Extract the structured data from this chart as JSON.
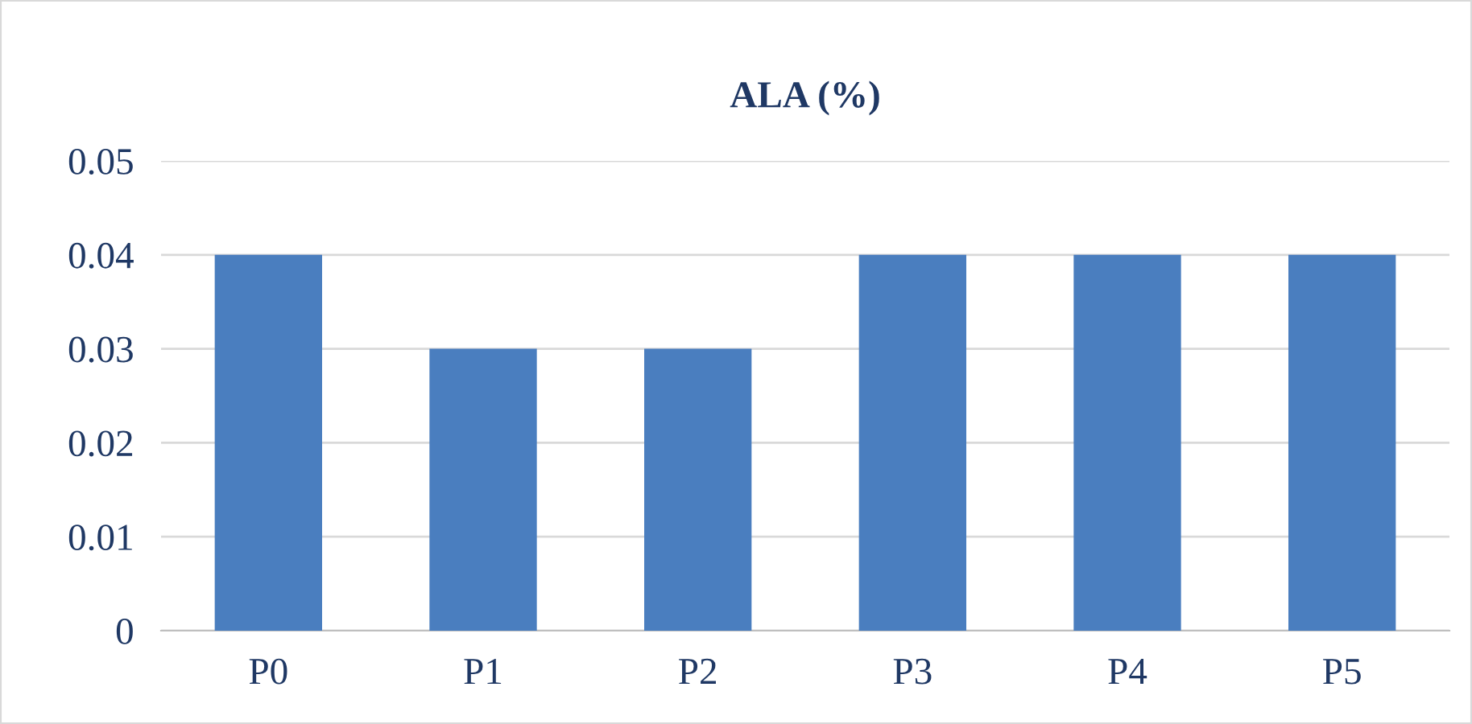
{
  "chart_data": {
    "type": "bar",
    "title": "ALA (%)",
    "categories": [
      "P0",
      "P1",
      "P2",
      "P3",
      "P4",
      "P5"
    ],
    "values": [
      0.04,
      0.03,
      0.03,
      0.04,
      0.04,
      0.04
    ],
    "color": "#4a7ebf",
    "ylim": [
      0,
      0.05
    ],
    "yticks": [
      {
        "value": 0,
        "label": "0"
      },
      0.01,
      0.02,
      0.03,
      0.04,
      0.05
    ],
    "grid": "y",
    "legend": false
  }
}
